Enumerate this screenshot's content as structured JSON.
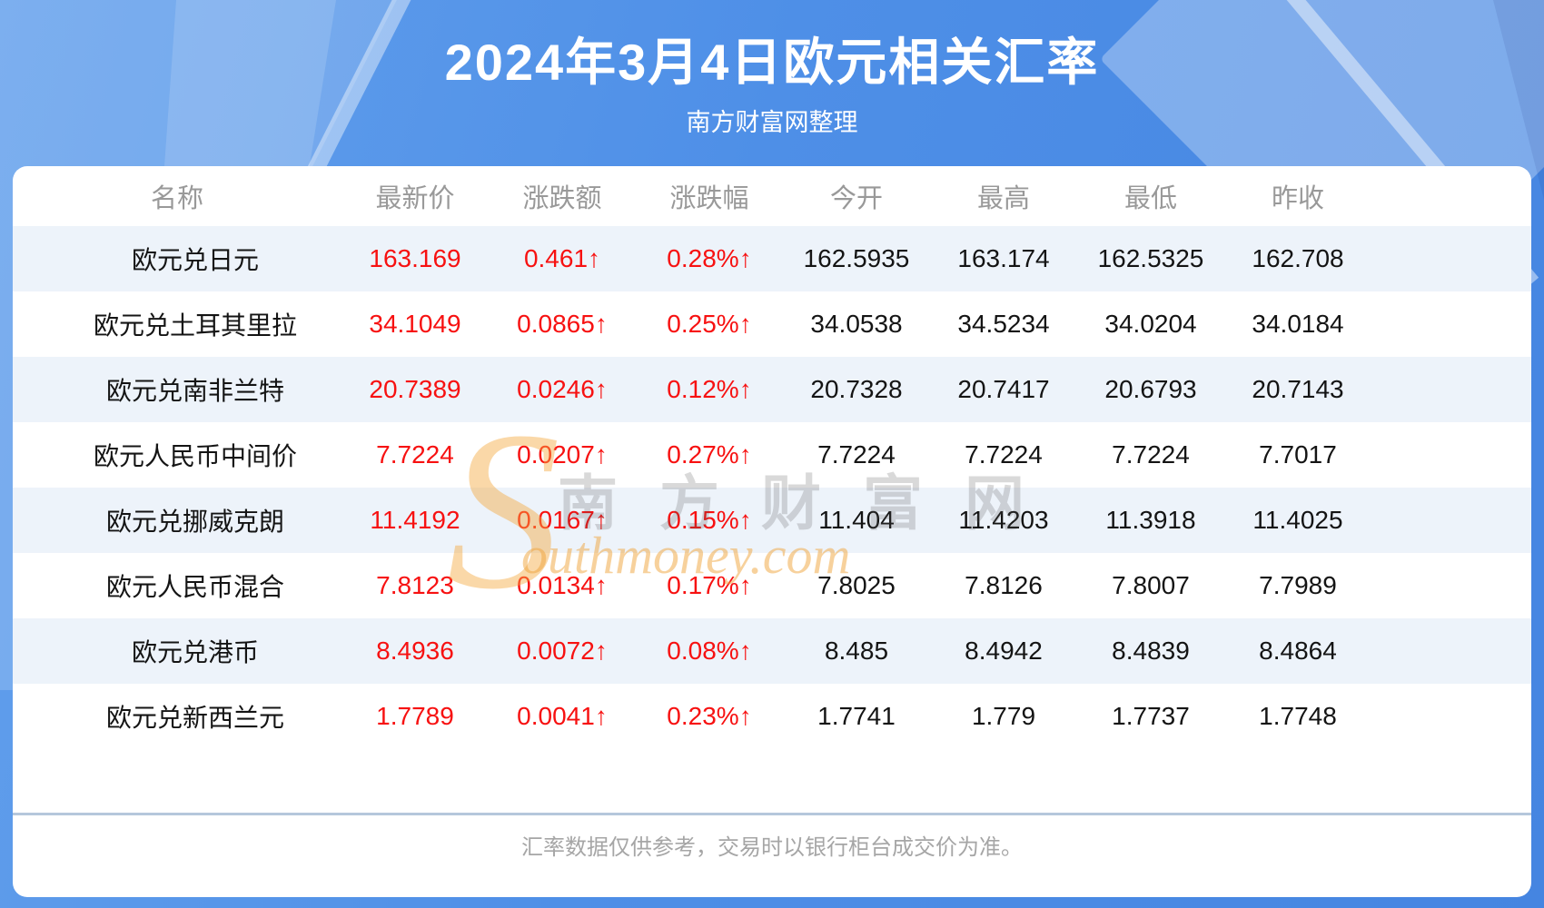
{
  "page": {
    "subtitle": "南方财富网整理",
    "footer_note": "汇率数据仅供参考，交易时以银行柜台成交价为准。",
    "watermark": {
      "initial": "S",
      "cn": "南方财富网",
      "en": "outhmoney.com"
    }
  },
  "colors": {
    "accent_red": "#f71111",
    "row_alt_blue": "#edf3fa",
    "banner_blue": "#4e8fe7",
    "watermark_orange": "#f5a93f",
    "header_gray": "#999999"
  },
  "chart_data": {
    "type": "table",
    "title": "2024年3月4日欧元相关汇率",
    "columns": [
      "名称",
      "最新价",
      "涨跌额",
      "涨跌幅",
      "今开",
      "最高",
      "最低",
      "昨收"
    ],
    "rows": [
      {
        "name": "欧元兑日元",
        "latest": "163.169",
        "change": "0.461",
        "arrow": "↑",
        "pct": "0.28%",
        "open": "162.5935",
        "high": "163.174",
        "low": "162.5325",
        "prev_close": "162.708"
      },
      {
        "name": "欧元兑土耳其里拉",
        "latest": "34.1049",
        "change": "0.0865",
        "arrow": "↑",
        "pct": "0.25%",
        "open": "34.0538",
        "high": "34.5234",
        "low": "34.0204",
        "prev_close": "34.0184"
      },
      {
        "name": "欧元兑南非兰特",
        "latest": "20.7389",
        "change": "0.0246",
        "arrow": "↑",
        "pct": "0.12%",
        "open": "20.7328",
        "high": "20.7417",
        "low": "20.6793",
        "prev_close": "20.7143"
      },
      {
        "name": "欧元人民币中间价",
        "latest": "7.7224",
        "change": "0.0207",
        "arrow": "↑",
        "pct": "0.27%",
        "open": "7.7224",
        "high": "7.7224",
        "low": "7.7224",
        "prev_close": "7.7017"
      },
      {
        "name": "欧元兑挪威克朗",
        "latest": "11.4192",
        "change": "0.0167",
        "arrow": "↑",
        "pct": "0.15%",
        "open": "11.404",
        "high": "11.4203",
        "low": "11.3918",
        "prev_close": "11.4025"
      },
      {
        "name": "欧元人民币混合",
        "latest": "7.8123",
        "change": "0.0134",
        "arrow": "↑",
        "pct": "0.17%",
        "open": "7.8025",
        "high": "7.8126",
        "low": "7.8007",
        "prev_close": "7.7989"
      },
      {
        "name": "欧元兑港币",
        "latest": "8.4936",
        "change": "0.0072",
        "arrow": "↑",
        "pct": "0.08%",
        "open": "8.485",
        "high": "8.4942",
        "low": "8.4839",
        "prev_close": "8.4864"
      },
      {
        "name": "欧元兑新西兰元",
        "latest": "1.7789",
        "change": "0.0041",
        "arrow": "↑",
        "pct": "0.23%",
        "open": "1.7741",
        "high": "1.779",
        "low": "1.7737",
        "prev_close": "1.7748"
      }
    ]
  }
}
